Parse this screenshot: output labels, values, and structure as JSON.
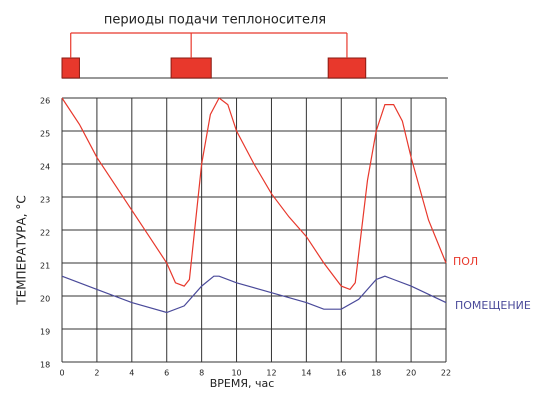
{
  "chart_data": {
    "type": "line",
    "title": "периоды подачи теплоносителя",
    "heating_periods": [
      [
        0,
        1
      ],
      [
        6.25,
        8.55
      ],
      [
        15.25,
        17.4
      ]
    ],
    "xlabel": "ВРЕМЯ, час",
    "ylabel": "ТЕМПЕРАТУРА, °С",
    "xlim": [
      0,
      22
    ],
    "xticks": [
      0,
      2,
      4,
      6,
      8,
      10,
      12,
      14,
      16,
      18,
      20,
      22
    ],
    "ylim": [
      18,
      26
    ],
    "yticks": [
      18,
      19,
      20,
      21,
      22,
      23,
      24,
      25,
      26
    ],
    "grid": true,
    "series": [
      {
        "name": "ПОЛ",
        "color": "#e8382c",
        "x": [
          0,
          1,
          2,
          3,
          4,
          5,
          6,
          6.5,
          7,
          7.3,
          8,
          8.5,
          9,
          9.5,
          10,
          11,
          12,
          13,
          14,
          15,
          16,
          16.5,
          16.8,
          17.5,
          18,
          18.5,
          19,
          19.5,
          20,
          21,
          22
        ],
        "values": [
          26,
          25.2,
          24.2,
          23.4,
          22.6,
          21.8,
          21,
          20.4,
          20.3,
          20.5,
          24,
          25.5,
          26,
          25.8,
          25,
          24,
          23.1,
          22.4,
          21.8,
          21,
          20.3,
          20.2,
          20.4,
          23.5,
          25,
          25.8,
          25.8,
          25.3,
          24.2,
          22.3,
          21
        ]
      },
      {
        "name": "ПОМЕЩЕНИЕ",
        "color": "#4a4a9a",
        "x": [
          0,
          2,
          4,
          6,
          7,
          8,
          8.7,
          9,
          10,
          12,
          14,
          15,
          16,
          17,
          18,
          18.5,
          19,
          20,
          22
        ],
        "values": [
          20.6,
          20.2,
          19.8,
          19.5,
          19.7,
          20.3,
          20.6,
          20.6,
          20.4,
          20.1,
          19.8,
          19.6,
          19.6,
          19.9,
          20.5,
          20.6,
          20.5,
          20.3,
          19.8
        ]
      }
    ]
  }
}
